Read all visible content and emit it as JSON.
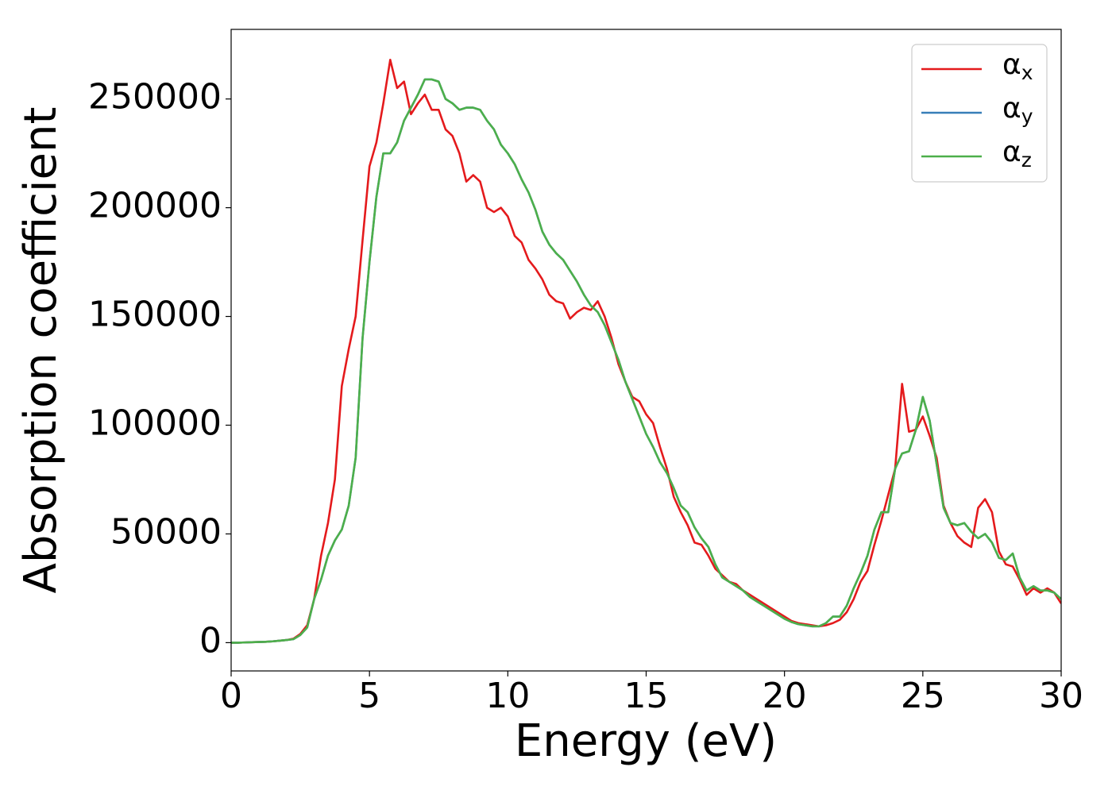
{
  "chart_data": {
    "type": "line",
    "xlabel": "Energy (eV)",
    "ylabel": "Absorption coefficient",
    "x": [
      0,
      0.25,
      0.5,
      0.75,
      1,
      1.25,
      1.5,
      1.75,
      2,
      2.25,
      2.5,
      2.75,
      3,
      3.25,
      3.5,
      3.75,
      4,
      4.25,
      4.5,
      4.75,
      5,
      5.25,
      5.5,
      5.75,
      6,
      6.25,
      6.5,
      6.75,
      7,
      7.25,
      7.5,
      7.75,
      8,
      8.25,
      8.5,
      8.75,
      9,
      9.25,
      9.5,
      9.75,
      10,
      10.25,
      10.5,
      10.75,
      11,
      11.25,
      11.5,
      11.75,
      12,
      12.25,
      12.5,
      12.75,
      13,
      13.25,
      13.5,
      13.75,
      14,
      14.25,
      14.5,
      14.75,
      15,
      15.25,
      15.5,
      15.75,
      16,
      16.25,
      16.5,
      16.75,
      17,
      17.25,
      17.5,
      17.75,
      18,
      18.25,
      18.5,
      18.75,
      19,
      19.25,
      19.5,
      19.75,
      20,
      20.25,
      20.5,
      20.75,
      21,
      21.25,
      21.5,
      21.75,
      22,
      22.25,
      22.5,
      22.75,
      23,
      23.25,
      23.5,
      23.75,
      24,
      24.25,
      24.5,
      24.75,
      25,
      25.25,
      25.5,
      25.75,
      26,
      26.25,
      26.5,
      26.75,
      27,
      27.25,
      27.5,
      27.75,
      28,
      28.25,
      28.5,
      28.75,
      29,
      29.25,
      29.5,
      29.75,
      30
    ],
    "series": [
      {
        "name": "αx",
        "color": "#e41a1c",
        "values": [
          0,
          0,
          100,
          200,
          300,
          400,
          600,
          900,
          1200,
          1800,
          4000,
          8000,
          20000,
          40000,
          55000,
          75000,
          118000,
          135000,
          150000,
          185000,
          219000,
          230000,
          248000,
          268000,
          255000,
          258000,
          243000,
          248000,
          252000,
          245000,
          245000,
          236000,
          233000,
          225000,
          212000,
          215000,
          212000,
          200000,
          198000,
          200000,
          196000,
          187000,
          184000,
          176000,
          172000,
          167000,
          160000,
          157000,
          156000,
          149000,
          152000,
          154000,
          153000,
          157000,
          150000,
          140000,
          128000,
          120000,
          113000,
          111000,
          105000,
          101000,
          90000,
          80000,
          67000,
          60000,
          54000,
          46000,
          45000,
          40000,
          34000,
          31000,
          28000,
          27000,
          24000,
          22000,
          20000,
          18000,
          16000,
          14000,
          12000,
          10000,
          9000,
          8500,
          8000,
          7500,
          8000,
          9000,
          10500,
          14000,
          20000,
          28000,
          33000,
          45000,
          56000,
          68000,
          80000,
          119000,
          97000,
          98000,
          104000,
          95000,
          85000,
          63000,
          55000,
          49000,
          46000,
          44000,
          62000,
          66000,
          60000,
          42000,
          36000,
          35000,
          29000,
          22000,
          25000,
          23000,
          25000,
          23000,
          18000
        ]
      },
      {
        "name": "αy",
        "color": "#377eb8",
        "values": [
          0,
          0,
          100,
          200,
          300,
          400,
          600,
          900,
          1200,
          1600,
          3500,
          7000,
          20000,
          29000,
          40000,
          47000,
          52000,
          63000,
          85000,
          140000,
          175000,
          205000,
          225000,
          225000,
          230000,
          240000,
          246000,
          252000,
          259000,
          259000,
          258000,
          250000,
          248000,
          245000,
          246000,
          246000,
          245000,
          240000,
          236000,
          229000,
          225000,
          220000,
          213000,
          207000,
          199000,
          189000,
          183000,
          179000,
          176000,
          171000,
          166000,
          160000,
          155000,
          152000,
          146000,
          138000,
          130000,
          120000,
          112000,
          104000,
          96000,
          90000,
          83000,
          78000,
          71000,
          63000,
          60000,
          53000,
          48000,
          44000,
          36000,
          30000,
          28000,
          26000,
          24000,
          21000,
          19000,
          17000,
          15000,
          13000,
          11000,
          9500,
          8500,
          8000,
          7500,
          7500,
          9000,
          12000,
          12000,
          17000,
          25000,
          32000,
          40000,
          52000,
          60000,
          60000,
          80000,
          87000,
          88000,
          98000,
          113000,
          102000,
          82000,
          62000,
          55000,
          54000,
          55000,
          51000,
          48000,
          50000,
          46000,
          39000,
          38000,
          41000,
          30000,
          24000,
          26000,
          24000,
          24000,
          23000,
          20000
        ]
      },
      {
        "name": "αz",
        "color": "#4daf4a",
        "values": [
          0,
          0,
          100,
          200,
          300,
          400,
          600,
          900,
          1200,
          1600,
          3500,
          7000,
          20000,
          29000,
          40000,
          47000,
          52000,
          63000,
          85000,
          140000,
          175000,
          205000,
          225000,
          225000,
          230000,
          240000,
          246000,
          252000,
          259000,
          259000,
          258000,
          250000,
          248000,
          245000,
          246000,
          246000,
          245000,
          240000,
          236000,
          229000,
          225000,
          220000,
          213000,
          207000,
          199000,
          189000,
          183000,
          179000,
          176000,
          171000,
          166000,
          160000,
          155000,
          152000,
          146000,
          138000,
          130000,
          120000,
          112000,
          104000,
          96000,
          90000,
          83000,
          78000,
          71000,
          63000,
          60000,
          53000,
          48000,
          44000,
          36000,
          30000,
          28000,
          26000,
          24000,
          21000,
          19000,
          17000,
          15000,
          13000,
          11000,
          9500,
          8500,
          8000,
          7500,
          7500,
          9000,
          12000,
          12000,
          17000,
          25000,
          32000,
          40000,
          52000,
          60000,
          60000,
          80000,
          87000,
          88000,
          98000,
          113000,
          102000,
          82000,
          62000,
          55000,
          54000,
          55000,
          51000,
          48000,
          50000,
          46000,
          39000,
          38000,
          41000,
          30000,
          24000,
          26000,
          24000,
          24000,
          23000,
          20000
        ]
      }
    ],
    "xlim": [
      0,
      30
    ],
    "xticks": [
      0,
      5,
      10,
      15,
      20,
      25,
      30
    ],
    "ylim": [
      -13000,
      282000
    ],
    "yticks": [
      0,
      50000,
      100000,
      150000,
      200000,
      250000
    ],
    "legend": "upper right"
  }
}
